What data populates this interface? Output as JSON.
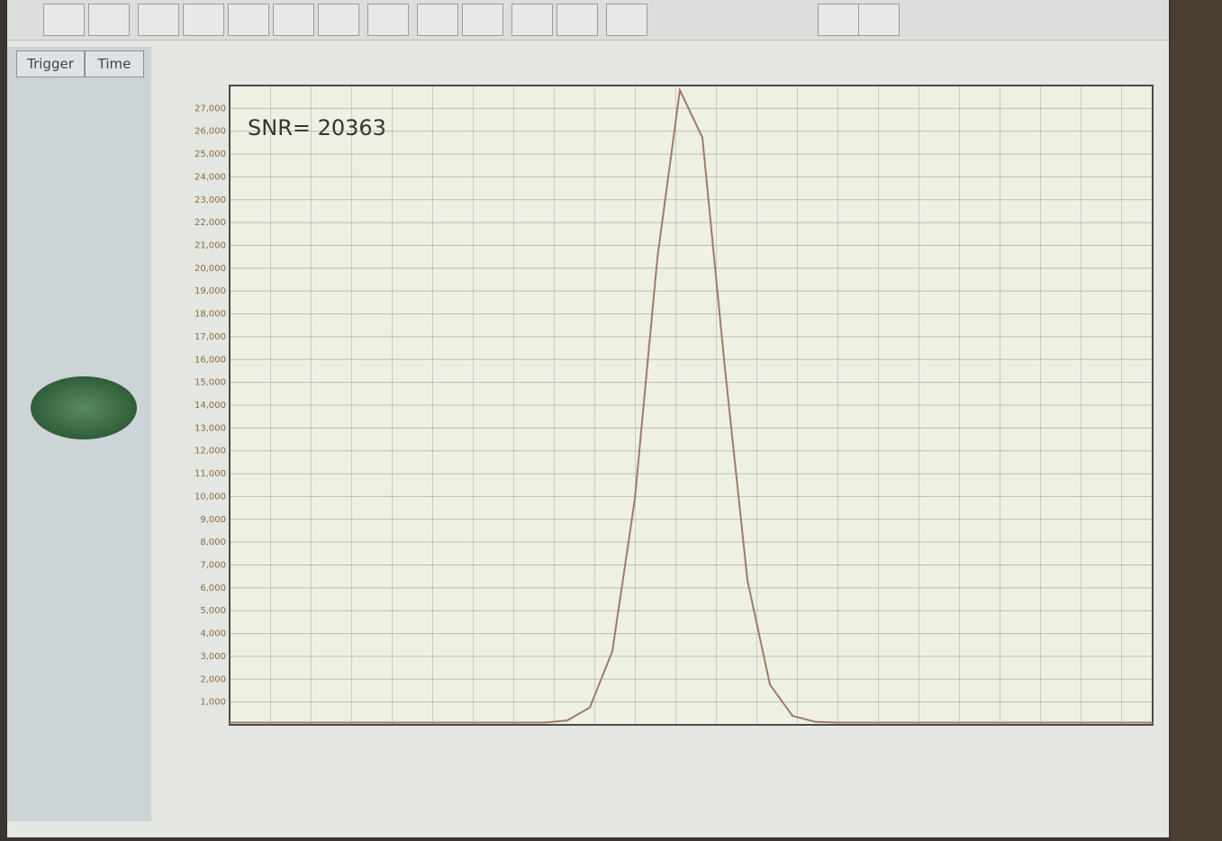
{
  "tabs": [
    "Trigger",
    "Time"
  ],
  "chart_data": {
    "type": "line",
    "annotation": "SNR= 20363",
    "categories": [
      null,
      null,
      null,
      null,
      null,
      null,
      null,
      null,
      null,
      null,
      null,
      null,
      null,
      null,
      null,
      null,
      null,
      null,
      null,
      null,
      null,
      null,
      null,
      null,
      null,
      null,
      null,
      null,
      null,
      null,
      null,
      null,
      null,
      null,
      null,
      null,
      null,
      null,
      null,
      null,
      null,
      null
    ],
    "series": [
      {
        "color": "#a07a6a",
        "values": [
          100,
          100,
          100,
          100,
          100,
          100,
          100,
          100,
          100,
          100,
          100,
          100,
          100,
          100,
          100,
          193,
          762,
          3227,
          9896,
          20450,
          27800,
          25720,
          15618,
          6333,
          1762,
          393,
          134,
          100,
          100,
          100,
          100,
          100,
          100,
          100,
          100,
          100,
          100,
          100,
          100,
          100,
          100,
          100
        ]
      }
    ],
    "ylim": [
      0,
      28000
    ],
    "yticks": [
      {
        "value": 1000,
        "label": "1,000"
      },
      {
        "value": 2000,
        "label": "2,000"
      },
      {
        "value": 3000,
        "label": "3,000"
      },
      {
        "value": 4000,
        "label": "4,000"
      },
      {
        "value": 5000,
        "label": "5,000"
      },
      {
        "value": 6000,
        "label": "6,000"
      },
      {
        "value": 7000,
        "label": "7,000"
      },
      {
        "value": 8000,
        "label": "8,000"
      },
      {
        "value": 9000,
        "label": "9,000"
      },
      {
        "value": 10000,
        "label": "10,000"
      },
      {
        "value": 11000,
        "label": "11,000"
      },
      {
        "value": 12000,
        "label": "12,000"
      },
      {
        "value": 13000,
        "label": "13,000"
      },
      {
        "value": 14000,
        "label": "14,000"
      },
      {
        "value": 15000,
        "label": "15,000"
      },
      {
        "value": 16000,
        "label": "16,000"
      },
      {
        "value": 17000,
        "label": "17,000"
      },
      {
        "value": 18000,
        "label": "18,000"
      },
      {
        "value": 19000,
        "label": "19,000"
      },
      {
        "value": 20000,
        "label": "20,000"
      },
      {
        "value": 21000,
        "label": "21,000"
      },
      {
        "value": 22000,
        "label": "22,000"
      },
      {
        "value": 23000,
        "label": "23,000"
      },
      {
        "value": 24000,
        "label": "24,000"
      },
      {
        "value": 25000,
        "label": "25,000"
      },
      {
        "value": 26000,
        "label": "26,000"
      },
      {
        "value": 27000,
        "label": "27,000"
      }
    ],
    "grid": true
  }
}
